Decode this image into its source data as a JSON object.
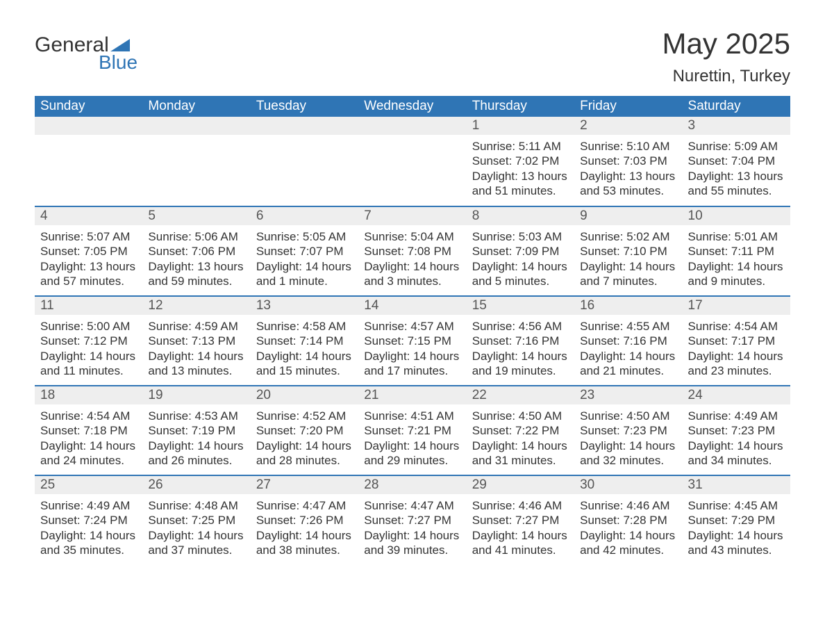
{
  "logo": {
    "word1": "General",
    "word2": "Blue",
    "brand_color": "#2f75b5",
    "text_color": "#333333"
  },
  "title": {
    "month": "May 2025",
    "location": "Nurettin, Turkey"
  },
  "colors": {
    "header_bg": "#2f75b5",
    "header_text": "#ffffff",
    "day_band_bg": "#eeeeee",
    "day_band_text": "#555555",
    "body_text": "#333333",
    "page_bg": "#ffffff",
    "week_divider": "#2f75b5"
  },
  "fontsizes": {
    "title_month": 42,
    "title_location": 24,
    "weekday": 19,
    "day_number": 19,
    "body": 17
  },
  "calendar": {
    "weekdays": [
      "Sunday",
      "Monday",
      "Tuesday",
      "Wednesday",
      "Thursday",
      "Friday",
      "Saturday"
    ],
    "weeks": [
      [
        {
          "blank": true
        },
        {
          "blank": true
        },
        {
          "blank": true
        },
        {
          "blank": true
        },
        {
          "day": "1",
          "sunrise": "Sunrise: 5:11 AM",
          "sunset": "Sunset: 7:02 PM",
          "daylight1": "Daylight: 13 hours",
          "daylight2": "and 51 minutes."
        },
        {
          "day": "2",
          "sunrise": "Sunrise: 5:10 AM",
          "sunset": "Sunset: 7:03 PM",
          "daylight1": "Daylight: 13 hours",
          "daylight2": "and 53 minutes."
        },
        {
          "day": "3",
          "sunrise": "Sunrise: 5:09 AM",
          "sunset": "Sunset: 7:04 PM",
          "daylight1": "Daylight: 13 hours",
          "daylight2": "and 55 minutes."
        }
      ],
      [
        {
          "day": "4",
          "sunrise": "Sunrise: 5:07 AM",
          "sunset": "Sunset: 7:05 PM",
          "daylight1": "Daylight: 13 hours",
          "daylight2": "and 57 minutes."
        },
        {
          "day": "5",
          "sunrise": "Sunrise: 5:06 AM",
          "sunset": "Sunset: 7:06 PM",
          "daylight1": "Daylight: 13 hours",
          "daylight2": "and 59 minutes."
        },
        {
          "day": "6",
          "sunrise": "Sunrise: 5:05 AM",
          "sunset": "Sunset: 7:07 PM",
          "daylight1": "Daylight: 14 hours",
          "daylight2": "and 1 minute."
        },
        {
          "day": "7",
          "sunrise": "Sunrise: 5:04 AM",
          "sunset": "Sunset: 7:08 PM",
          "daylight1": "Daylight: 14 hours",
          "daylight2": "and 3 minutes."
        },
        {
          "day": "8",
          "sunrise": "Sunrise: 5:03 AM",
          "sunset": "Sunset: 7:09 PM",
          "daylight1": "Daylight: 14 hours",
          "daylight2": "and 5 minutes."
        },
        {
          "day": "9",
          "sunrise": "Sunrise: 5:02 AM",
          "sunset": "Sunset: 7:10 PM",
          "daylight1": "Daylight: 14 hours",
          "daylight2": "and 7 minutes."
        },
        {
          "day": "10",
          "sunrise": "Sunrise: 5:01 AM",
          "sunset": "Sunset: 7:11 PM",
          "daylight1": "Daylight: 14 hours",
          "daylight2": "and 9 minutes."
        }
      ],
      [
        {
          "day": "11",
          "sunrise": "Sunrise: 5:00 AM",
          "sunset": "Sunset: 7:12 PM",
          "daylight1": "Daylight: 14 hours",
          "daylight2": "and 11 minutes."
        },
        {
          "day": "12",
          "sunrise": "Sunrise: 4:59 AM",
          "sunset": "Sunset: 7:13 PM",
          "daylight1": "Daylight: 14 hours",
          "daylight2": "and 13 minutes."
        },
        {
          "day": "13",
          "sunrise": "Sunrise: 4:58 AM",
          "sunset": "Sunset: 7:14 PM",
          "daylight1": "Daylight: 14 hours",
          "daylight2": "and 15 minutes."
        },
        {
          "day": "14",
          "sunrise": "Sunrise: 4:57 AM",
          "sunset": "Sunset: 7:15 PM",
          "daylight1": "Daylight: 14 hours",
          "daylight2": "and 17 minutes."
        },
        {
          "day": "15",
          "sunrise": "Sunrise: 4:56 AM",
          "sunset": "Sunset: 7:16 PM",
          "daylight1": "Daylight: 14 hours",
          "daylight2": "and 19 minutes."
        },
        {
          "day": "16",
          "sunrise": "Sunrise: 4:55 AM",
          "sunset": "Sunset: 7:16 PM",
          "daylight1": "Daylight: 14 hours",
          "daylight2": "and 21 minutes."
        },
        {
          "day": "17",
          "sunrise": "Sunrise: 4:54 AM",
          "sunset": "Sunset: 7:17 PM",
          "daylight1": "Daylight: 14 hours",
          "daylight2": "and 23 minutes."
        }
      ],
      [
        {
          "day": "18",
          "sunrise": "Sunrise: 4:54 AM",
          "sunset": "Sunset: 7:18 PM",
          "daylight1": "Daylight: 14 hours",
          "daylight2": "and 24 minutes."
        },
        {
          "day": "19",
          "sunrise": "Sunrise: 4:53 AM",
          "sunset": "Sunset: 7:19 PM",
          "daylight1": "Daylight: 14 hours",
          "daylight2": "and 26 minutes."
        },
        {
          "day": "20",
          "sunrise": "Sunrise: 4:52 AM",
          "sunset": "Sunset: 7:20 PM",
          "daylight1": "Daylight: 14 hours",
          "daylight2": "and 28 minutes."
        },
        {
          "day": "21",
          "sunrise": "Sunrise: 4:51 AM",
          "sunset": "Sunset: 7:21 PM",
          "daylight1": "Daylight: 14 hours",
          "daylight2": "and 29 minutes."
        },
        {
          "day": "22",
          "sunrise": "Sunrise: 4:50 AM",
          "sunset": "Sunset: 7:22 PM",
          "daylight1": "Daylight: 14 hours",
          "daylight2": "and 31 minutes."
        },
        {
          "day": "23",
          "sunrise": "Sunrise: 4:50 AM",
          "sunset": "Sunset: 7:23 PM",
          "daylight1": "Daylight: 14 hours",
          "daylight2": "and 32 minutes."
        },
        {
          "day": "24",
          "sunrise": "Sunrise: 4:49 AM",
          "sunset": "Sunset: 7:23 PM",
          "daylight1": "Daylight: 14 hours",
          "daylight2": "and 34 minutes."
        }
      ],
      [
        {
          "day": "25",
          "sunrise": "Sunrise: 4:49 AM",
          "sunset": "Sunset: 7:24 PM",
          "daylight1": "Daylight: 14 hours",
          "daylight2": "and 35 minutes."
        },
        {
          "day": "26",
          "sunrise": "Sunrise: 4:48 AM",
          "sunset": "Sunset: 7:25 PM",
          "daylight1": "Daylight: 14 hours",
          "daylight2": "and 37 minutes."
        },
        {
          "day": "27",
          "sunrise": "Sunrise: 4:47 AM",
          "sunset": "Sunset: 7:26 PM",
          "daylight1": "Daylight: 14 hours",
          "daylight2": "and 38 minutes."
        },
        {
          "day": "28",
          "sunrise": "Sunrise: 4:47 AM",
          "sunset": "Sunset: 7:27 PM",
          "daylight1": "Daylight: 14 hours",
          "daylight2": "and 39 minutes."
        },
        {
          "day": "29",
          "sunrise": "Sunrise: 4:46 AM",
          "sunset": "Sunset: 7:27 PM",
          "daylight1": "Daylight: 14 hours",
          "daylight2": "and 41 minutes."
        },
        {
          "day": "30",
          "sunrise": "Sunrise: 4:46 AM",
          "sunset": "Sunset: 7:28 PM",
          "daylight1": "Daylight: 14 hours",
          "daylight2": "and 42 minutes."
        },
        {
          "day": "31",
          "sunrise": "Sunrise: 4:45 AM",
          "sunset": "Sunset: 7:29 PM",
          "daylight1": "Daylight: 14 hours",
          "daylight2": "and 43 minutes."
        }
      ]
    ]
  }
}
